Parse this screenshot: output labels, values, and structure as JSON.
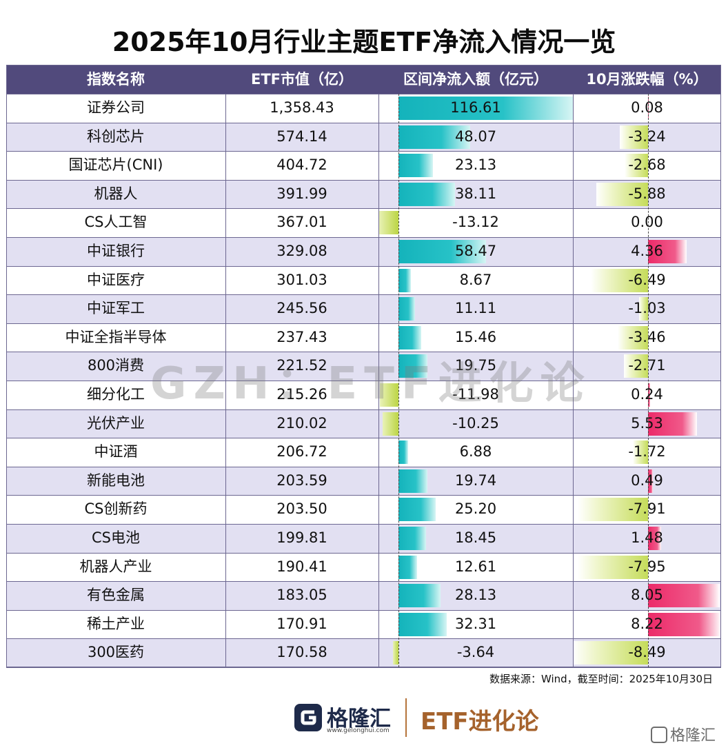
{
  "page": {
    "title": "2025年10月行业主题ETF净流入情况一览",
    "watermark": "GZH：ETF进化论",
    "source": "数据来源：Wind，截至时间：2025年10月30日",
    "footer": {
      "logo_text": "格隆汇",
      "logo_url": "www.gelonghui.com",
      "brand": "ETF进化论",
      "corner_text": "格隆汇"
    }
  },
  "colors": {
    "header_bg": "#514a7c",
    "row_alt": "#e2e0f2",
    "flow_pos": "#14b3bb",
    "flow_neg": "#bcd544",
    "ret_pos": "#ec2a69",
    "ret_neg": "#c5dc5a",
    "brand": "#a5622c"
  },
  "chart_data": {
    "type": "table",
    "title": "2025年10月行业主题ETF净流入情况一览",
    "columns": [
      "指数名称",
      "ETF市值（亿）",
      "区间净流入额（亿元）",
      "10月涨跌幅（%）"
    ],
    "rows": [
      {
        "name": "证券公司",
        "mv": "1,358.43",
        "flow": 116.61,
        "ret": 0.08
      },
      {
        "name": "科创芯片",
        "mv": "574.14",
        "flow": 48.07,
        "ret": -3.24
      },
      {
        "name": "国证芯片(CNI)",
        "mv": "404.72",
        "flow": 23.13,
        "ret": -2.68
      },
      {
        "name": "机器人",
        "mv": "391.99",
        "flow": 38.11,
        "ret": -5.88
      },
      {
        "name": "CS人工智",
        "mv": "367.01",
        "flow": -13.12,
        "ret": 0.0
      },
      {
        "name": "中证银行",
        "mv": "329.08",
        "flow": 58.47,
        "ret": 4.36
      },
      {
        "name": "中证医疗",
        "mv": "301.03",
        "flow": 8.67,
        "ret": -6.49
      },
      {
        "name": "中证军工",
        "mv": "245.56",
        "flow": 11.11,
        "ret": -1.03
      },
      {
        "name": "中证全指半导体",
        "mv": "237.43",
        "flow": 15.46,
        "ret": -3.46
      },
      {
        "name": "800消费",
        "mv": "221.52",
        "flow": 19.75,
        "ret": -2.71
      },
      {
        "name": "细分化工",
        "mv": "215.26",
        "flow": -11.98,
        "ret": 0.24
      },
      {
        "name": "光伏产业",
        "mv": "210.02",
        "flow": -10.25,
        "ret": 5.53
      },
      {
        "name": "中证酒",
        "mv": "206.72",
        "flow": 6.88,
        "ret": -1.72
      },
      {
        "name": "新能电池",
        "mv": "203.59",
        "flow": 19.74,
        "ret": 0.49
      },
      {
        "name": "CS创新药",
        "mv": "203.50",
        "flow": 25.2,
        "ret": -7.91
      },
      {
        "name": "CS电池",
        "mv": "199.81",
        "flow": 18.45,
        "ret": 1.48
      },
      {
        "name": "机器人产业",
        "mv": "190.41",
        "flow": 12.61,
        "ret": -7.95
      },
      {
        "name": "有色金属",
        "mv": "183.05",
        "flow": 28.13,
        "ret": 8.05
      },
      {
        "name": "稀土产业",
        "mv": "170.91",
        "flow": 32.31,
        "ret": 8.22
      },
      {
        "name": "300医药",
        "mv": "170.58",
        "flow": -3.64,
        "ret": -8.49
      }
    ],
    "flow_axis": {
      "min": -13.12,
      "max": 116.61
    },
    "ret_axis": {
      "min": -8.49,
      "max": 8.22
    }
  }
}
